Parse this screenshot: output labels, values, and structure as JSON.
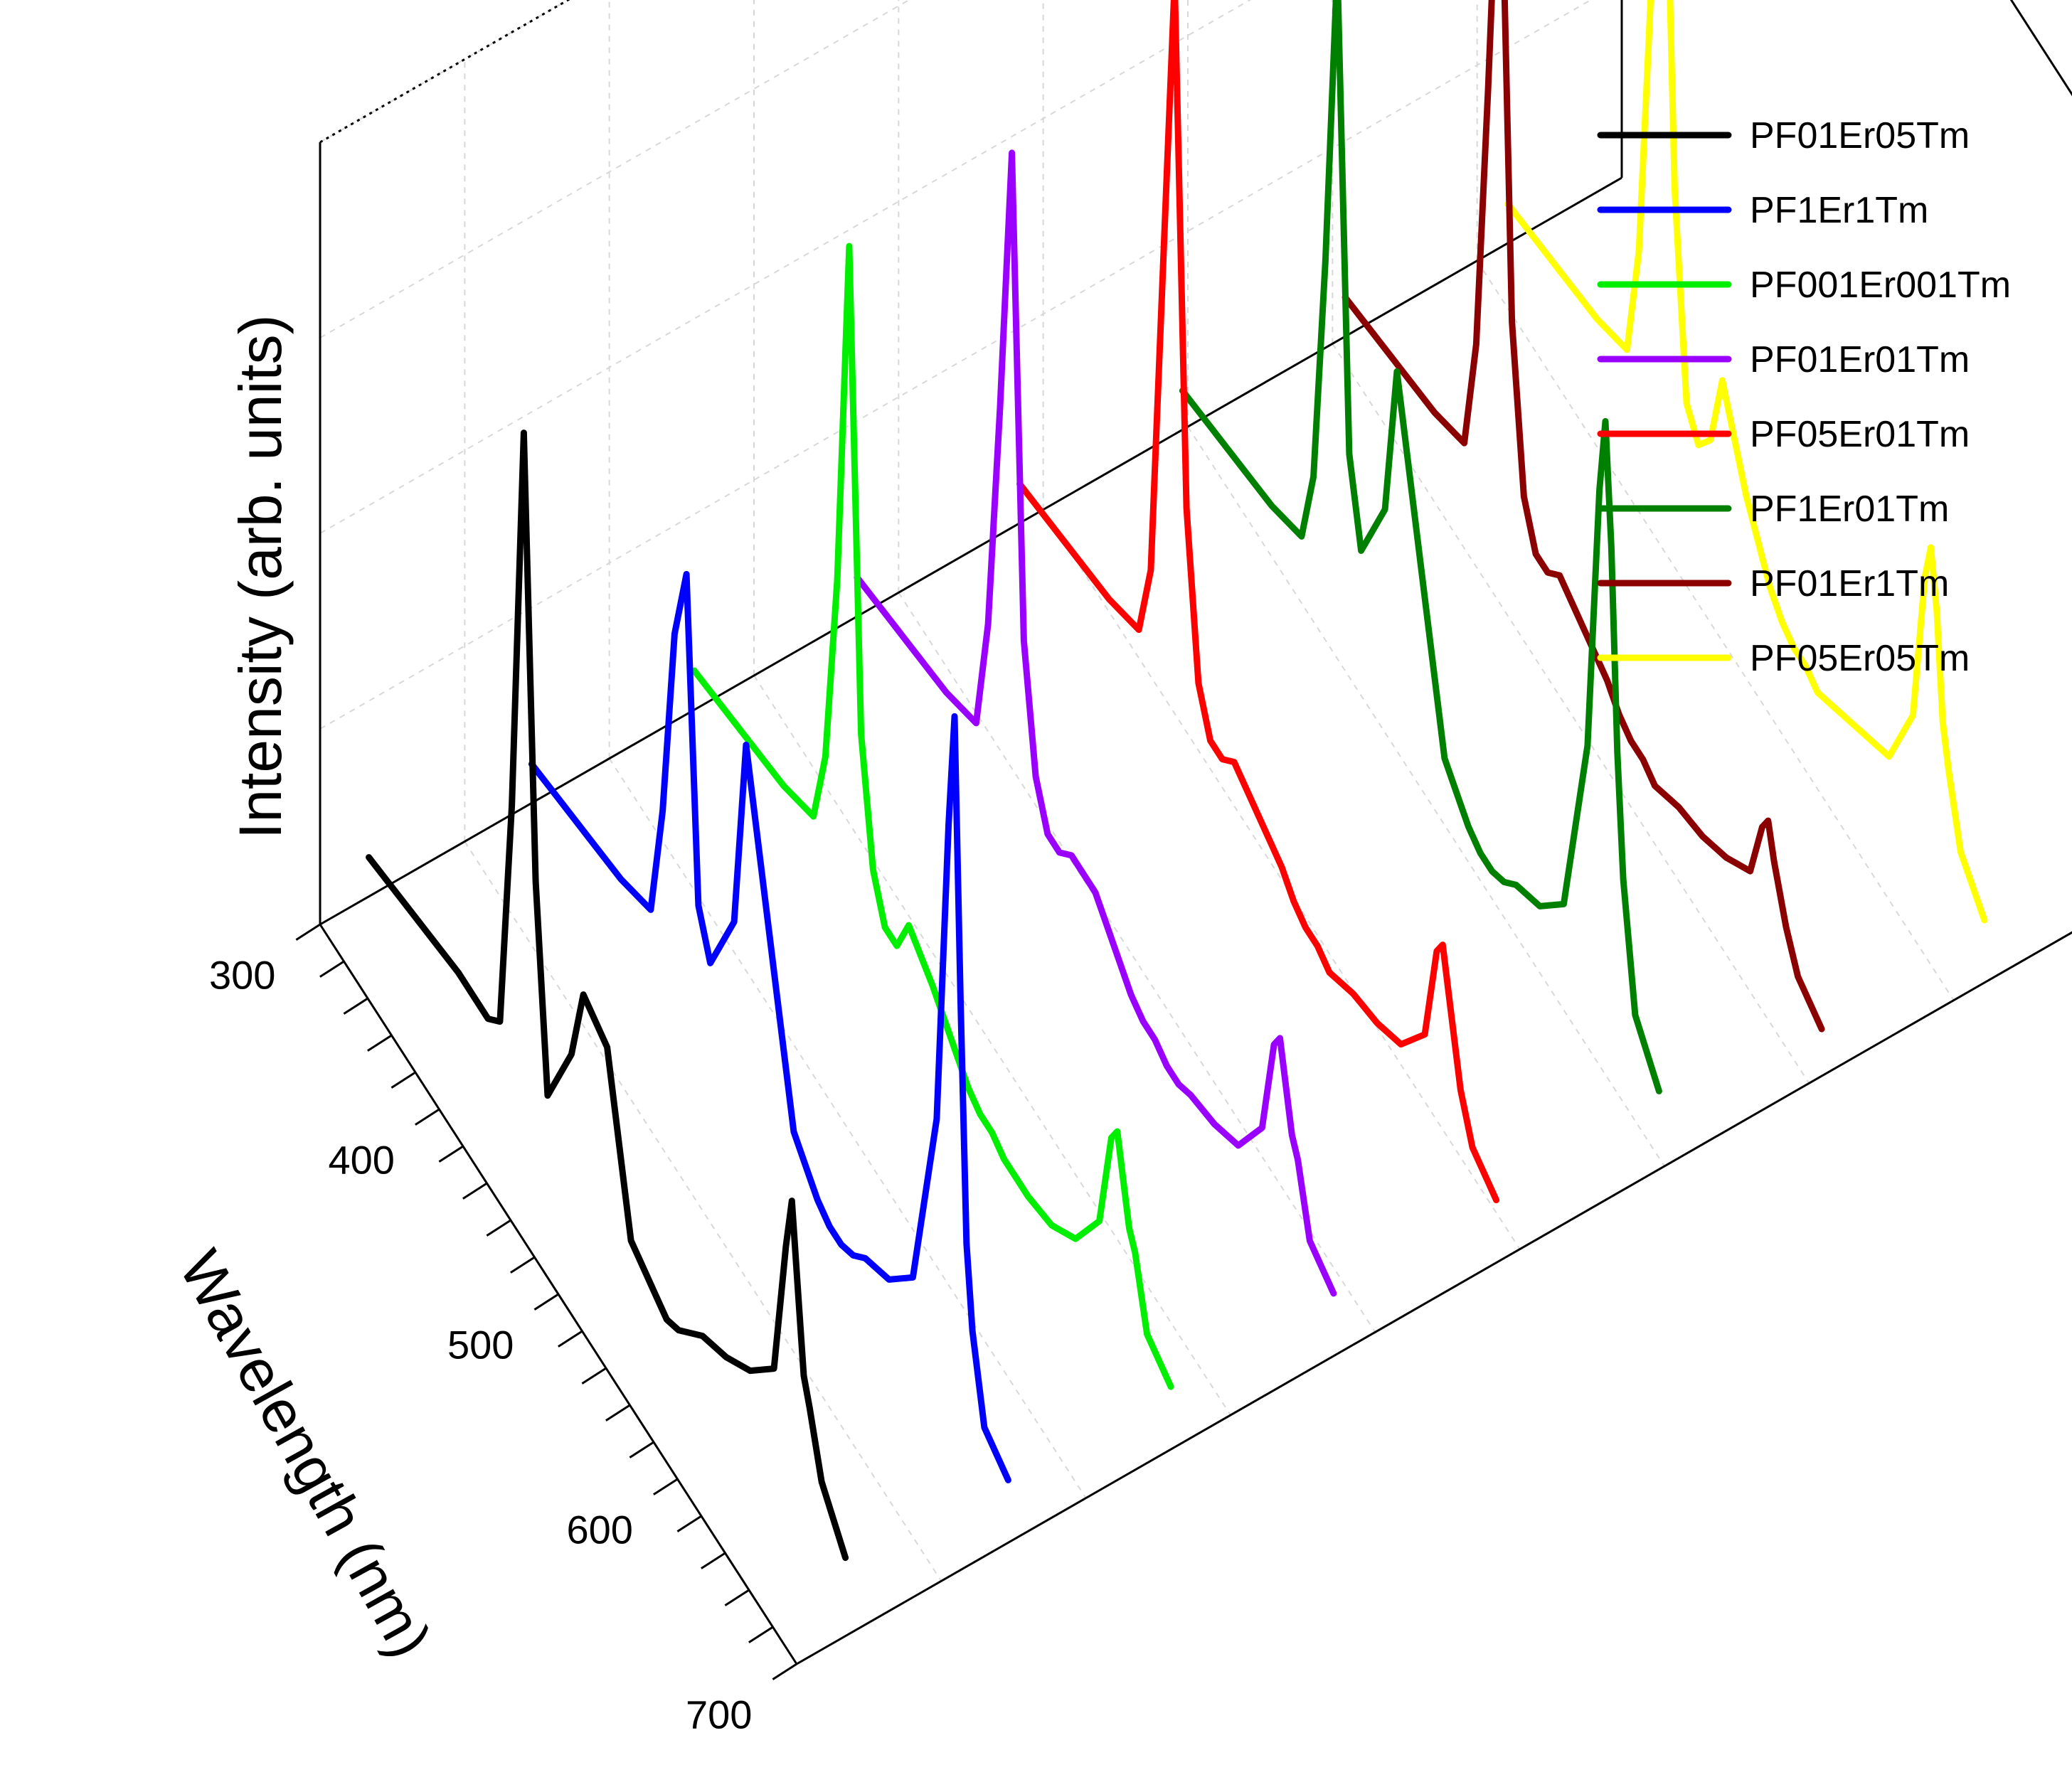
{
  "chart_data": {
    "type": "line",
    "subtype": "3d-waterfall",
    "xlabel": "Wavelength (nm)",
    "zlabel": "Intensity (arb. units)",
    "xlim": [
      300,
      700
    ],
    "xticks": [
      300,
      400,
      500,
      600,
      700
    ],
    "x": [
      300,
      325,
      350,
      375,
      400,
      410,
      420,
      430,
      440,
      450,
      460,
      470,
      480,
      500,
      520,
      530,
      540,
      550,
      560,
      570,
      580,
      600,
      620,
      640,
      650,
      655,
      660,
      665,
      670,
      680,
      700
    ],
    "series": [
      {
        "name": "PF01Er05Tm",
        "color": "#000000",
        "values": [
          0.05,
          0.06,
          0.07,
          0.08,
          0.08,
          0.1,
          0.4,
          0.9,
          0.35,
          0.1,
          0.15,
          0.2,
          0.3,
          0.28,
          0.08,
          0.07,
          0.06,
          0.05,
          0.06,
          0.08,
          0.1,
          0.12,
          0.15,
          0.2,
          0.38,
          0.45,
          0.35,
          0.25,
          0.22,
          0.15,
          0.1
        ]
      },
      {
        "name": "PF1Er1Tm",
        "color": "#0000ff",
        "values": [
          0.05,
          0.06,
          0.07,
          0.08,
          0.1,
          0.25,
          0.5,
          0.6,
          0.2,
          0.15,
          0.2,
          0.25,
          0.5,
          0.3,
          0.1,
          0.08,
          0.06,
          0.05,
          0.05,
          0.06,
          0.08,
          0.1,
          0.15,
          0.4,
          0.8,
          0.95,
          0.6,
          0.3,
          0.2,
          0.1,
          0.08
        ]
      },
      {
        "name": "PF001Er001Tm",
        "color": "#00ee00",
        "values": [
          0.05,
          0.06,
          0.07,
          0.08,
          0.1,
          0.2,
          0.45,
          0.9,
          0.3,
          0.15,
          0.1,
          0.1,
          0.15,
          0.12,
          0.08,
          0.06,
          0.05,
          0.05,
          0.04,
          0.04,
          0.04,
          0.05,
          0.08,
          0.15,
          0.28,
          0.3,
          0.25,
          0.2,
          0.18,
          0.1,
          0.08
        ]
      },
      {
        "name": "PF01Er01Tm",
        "color": "#9900ff",
        "values": [
          0.05,
          0.06,
          0.07,
          0.08,
          0.1,
          0.25,
          0.55,
          0.9,
          0.3,
          0.15,
          0.1,
          0.1,
          0.12,
          0.12,
          0.08,
          0.06,
          0.05,
          0.05,
          0.04,
          0.04,
          0.05,
          0.06,
          0.08,
          0.15,
          0.28,
          0.3,
          0.25,
          0.2,
          0.18,
          0.1,
          0.08
        ]
      },
      {
        "name": "PF05Er01Tm",
        "color": "#ff0000",
        "values": [
          0.05,
          0.06,
          0.07,
          0.08,
          0.1,
          0.2,
          0.6,
          1.0,
          0.35,
          0.15,
          0.1,
          0.1,
          0.12,
          0.1,
          0.08,
          0.06,
          0.05,
          0.05,
          0.04,
          0.05,
          0.06,
          0.07,
          0.09,
          0.15,
          0.28,
          0.3,
          0.25,
          0.2,
          0.15,
          0.1,
          0.08
        ]
      },
      {
        "name": "PF1Er01Tm",
        "color": "#008000",
        "values": [
          0.05,
          0.06,
          0.07,
          0.08,
          0.1,
          0.2,
          0.5,
          0.9,
          0.3,
          0.2,
          0.25,
          0.3,
          0.5,
          0.3,
          0.1,
          0.08,
          0.06,
          0.05,
          0.05,
          0.06,
          0.08,
          0.1,
          0.15,
          0.4,
          0.75,
          0.85,
          0.7,
          0.45,
          0.3,
          0.15,
          0.1
        ]
      },
      {
        "name": "PF01Er1Tm",
        "color": "#8b0000",
        "values": [
          0.05,
          0.06,
          0.07,
          0.08,
          0.1,
          0.25,
          0.6,
          1.0,
          0.35,
          0.15,
          0.1,
          0.1,
          0.12,
          0.1,
          0.08,
          0.06,
          0.05,
          0.05,
          0.04,
          0.05,
          0.06,
          0.07,
          0.09,
          0.12,
          0.2,
          0.22,
          0.18,
          0.15,
          0.12,
          0.08,
          0.06
        ]
      },
      {
        "name": "PF05Er05Tm",
        "color": "#ffff00",
        "values": [
          0.05,
          0.06,
          0.07,
          0.08,
          0.1,
          0.25,
          0.6,
          1.0,
          0.4,
          0.15,
          0.12,
          0.15,
          0.25,
          0.15,
          0.08,
          0.06,
          0.05,
          0.05,
          0.04,
          0.05,
          0.06,
          0.08,
          0.1,
          0.2,
          0.4,
          0.45,
          0.38,
          0.25,
          0.2,
          0.12,
          0.08
        ]
      }
    ],
    "legend_position": "top-right",
    "grid": true
  }
}
